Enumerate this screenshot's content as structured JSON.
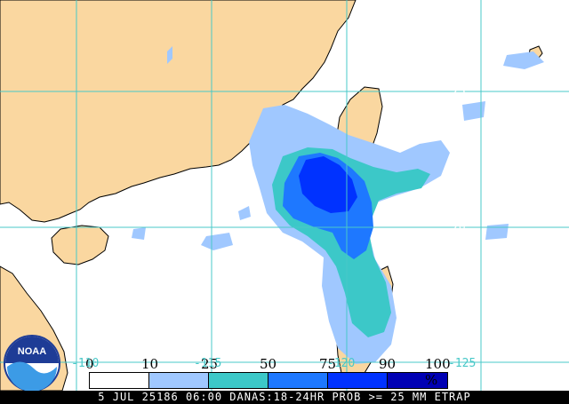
{
  "map": {
    "colors": {
      "land": "#fad7a0",
      "ocean": "#ffffff",
      "grid": "#48c8c8",
      "prob_10_25": "#a0c8ff",
      "prob_25_50": "#3cc8c8",
      "prob_50_75": "#1e78ff",
      "prob_75_90": "#0032ff",
      "prob_90_100": "#0000b4"
    },
    "grid_labels": {
      "lat_25": "25",
      "lat_20": "20",
      "lat_15": "15",
      "lon_a": "-110",
      "lon_b": "-115",
      "lon_c": "-120",
      "lon_d": "-125"
    }
  },
  "legend": {
    "ticks": [
      "0",
      "10",
      "25",
      "50",
      "75",
      "90",
      "100 %"
    ],
    "colors": [
      "#ffffff",
      "#a0c8ff",
      "#3cc8c8",
      "#1e78ff",
      "#0032ff",
      "#0000b4"
    ]
  },
  "footer": {
    "text": "5 JUL 25186 06:00 DANAS:18-24HR PROB >= 25 MM ETRAP"
  },
  "logo": {
    "text": "NOAA"
  }
}
